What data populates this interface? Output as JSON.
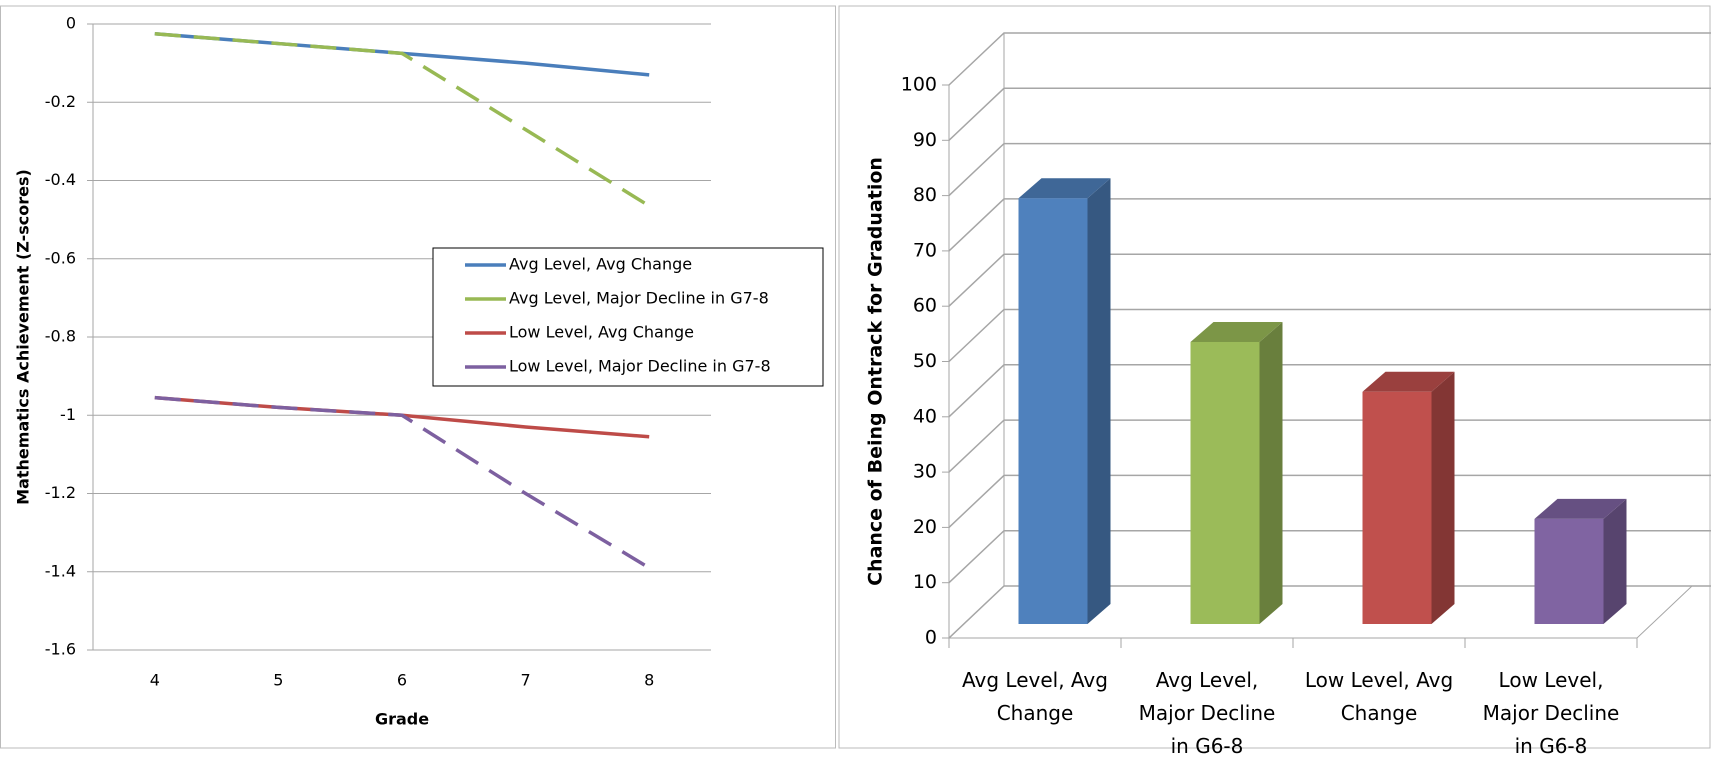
{
  "chart_data": [
    {
      "type": "line",
      "x_label": "Grade",
      "y_label": "Mathematics Achievement (Z-scores)",
      "x": [
        4,
        5,
        6,
        7,
        8
      ],
      "xlim": [
        3.5,
        8.5
      ],
      "xticks": [
        4,
        5,
        6,
        7,
        8
      ],
      "ylim": [
        -1.6,
        0
      ],
      "yticks": [
        0,
        -0.2,
        -0.4,
        -0.6,
        -0.8,
        -1,
        -1.2,
        -1.4,
        -1.6
      ],
      "grid": true,
      "legend": "right",
      "series": [
        {
          "name": "Avg Level, Avg Change",
          "color": "#4a7ebb",
          "dashed": false,
          "values": [
            -0.025,
            -0.05,
            -0.075,
            -0.1,
            -0.13
          ]
        },
        {
          "name": "Avg Level, Major Decline in G7-8",
          "color": "#98b954",
          "dashed": true,
          "values": [
            -0.025,
            -0.05,
            -0.075,
            -0.27,
            -0.465
          ]
        },
        {
          "name": "Low Level, Avg Change",
          "color": "#be4b48",
          "dashed": false,
          "values": [
            -0.955,
            -0.98,
            -1.0,
            -1.03,
            -1.055
          ]
        },
        {
          "name": "Low Level, Major Decline in G7-8",
          "color": "#7d60a0",
          "dashed": true,
          "values": [
            -0.955,
            -0.98,
            -1.0,
            -1.2,
            -1.39
          ]
        }
      ]
    },
    {
      "type": "bar3d",
      "y_label": "Chance of Being Ontrack for Graduation",
      "categories": [
        "Avg Level, Avg Change",
        "Avg Level, Major Decline in G6-8",
        "Low Level, Avg Change",
        "Low Level, Major Decline in G6-8"
      ],
      "values": [
        77,
        51,
        42,
        19
      ],
      "colors": [
        "#4f81bd",
        "#9bbb59",
        "#c0504d",
        "#8064a2"
      ],
      "ylim": [
        0,
        100
      ],
      "yticks": [
        0,
        10,
        20,
        30,
        40,
        50,
        60,
        70,
        80,
        90,
        100
      ],
      "grid": true
    }
  ]
}
